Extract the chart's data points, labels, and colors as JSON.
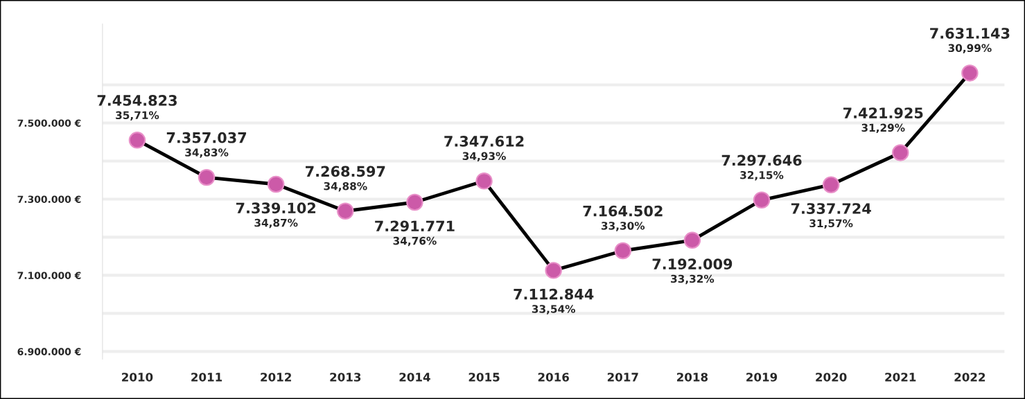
{
  "chart_data": {
    "type": "line",
    "categories": [
      "2010",
      "2011",
      "2012",
      "2013",
      "2014",
      "2015",
      "2016",
      "2017",
      "2018",
      "2019",
      "2020",
      "2021",
      "2022"
    ],
    "series": [
      {
        "color": "#000000",
        "colors": [
          "#cc5aa8",
          "#cc5aa8",
          "#cc5aa8",
          "#cc5aa8",
          "#cc5aa8",
          "#cc5aa8",
          "#cc5aa8",
          "#cc5aa8",
          "#cc5aa8",
          "#cc5aa8",
          "#cc5aa8",
          "#cc5aa8",
          "#cc5aa8"
        ],
        "values": [
          7454823,
          7357037,
          7339102,
          7268597,
          7291771,
          7347612,
          7112844,
          7164502,
          7192009,
          7297646,
          7337724,
          7421925,
          7631143
        ],
        "value_labels": [
          "7.454.823",
          "7.357.037",
          "7.339.102",
          "7.268.597",
          "7.291.771",
          "7.347.612",
          "7.112.844",
          "7.164.502",
          "7.192.009",
          "7.297.646",
          "7.337.724",
          "7.421.925",
          "7.631.143"
        ]
      }
    ],
    "marker": "circle",
    "line_style": "solid",
    "ylim": [
      6880000,
      7760000
    ],
    "yticks": [
      {
        "value": 6900000,
        "label": "6.900.000 €"
      },
      {
        "value": 7000000,
        "label": null
      },
      {
        "value": 7100000,
        "label": "7.100.000 €"
      },
      {
        "value": 7200000,
        "label": null
      },
      {
        "value": 7300000,
        "label": "7.300.000 €"
      },
      {
        "value": 7400000,
        "label": null
      },
      {
        "value": 7500000,
        "label": "7.500.000 €"
      },
      {
        "value": 7600000,
        "label": null
      }
    ],
    "grid": "y",
    "legend": false,
    "annotations": [
      "35,71%",
      "34,83%",
      "34,87%",
      "34,88%",
      "34,76%",
      "34,93%",
      "33,54%",
      "33,30%",
      "33,32%",
      "32,15%",
      "31,57%",
      "31,29%",
      "30,99%"
    ]
  }
}
